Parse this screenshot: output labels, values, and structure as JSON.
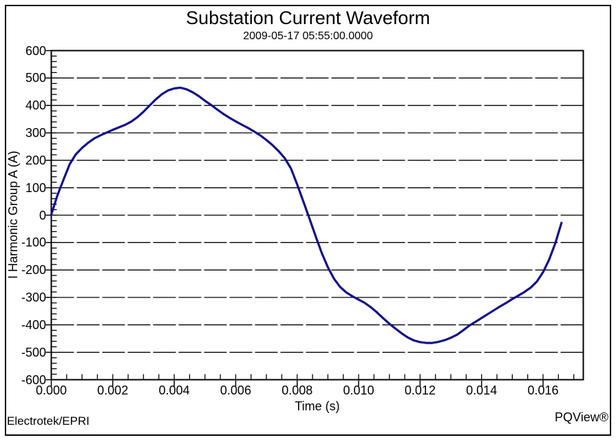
{
  "header": {
    "title": "Substation Current Waveform",
    "subtitle": "2009-05-17 05:55:00.0000"
  },
  "footer": {
    "left": "Electrotek/EPRI",
    "right": "PQView®"
  },
  "colors": {
    "background": "#FFFFFF",
    "border": "#000000",
    "grid": "#000000",
    "text": "#000000",
    "waveform_line": "#10108E"
  },
  "chart_data": {
    "type": "line",
    "title": "Substation Current Waveform",
    "subtitle": "2009-05-17 05:55:00.0000",
    "xlabel": "Time (s)",
    "ylabel": "I Harmonic Group A  (A)",
    "xlim": [
      0,
      0.01731
    ],
    "ylim": [
      -600,
      600
    ],
    "grid": "horizontal-dashed",
    "legend": "none",
    "x_tick_values": [
      0,
      0.002,
      0.004,
      0.006,
      0.008,
      0.01,
      0.012,
      0.014,
      0.016
    ],
    "x_tick_labels": [
      "0.000",
      "0.002",
      "0.004",
      "0.006",
      "0.008",
      "0.010",
      "0.012",
      "0.014",
      "0.016"
    ],
    "x_minor_step": 0.0005,
    "y_tick_values": [
      600,
      500,
      400,
      300,
      200,
      100,
      0,
      -100,
      -200,
      -300,
      -400,
      -500,
      -600
    ],
    "y_tick_labels": [
      "600",
      "500",
      "400",
      "300",
      "200",
      "100",
      "0",
      "-100",
      "-200",
      "-300",
      "-400",
      "-500",
      "-600"
    ],
    "y_minor_step": 20,
    "series": [
      {
        "name": "I Harmonic Group A",
        "color": "#10108E",
        "x": [
          0.0,
          0.0002,
          0.0004,
          0.0006,
          0.0008,
          0.001,
          0.0012,
          0.0014,
          0.0016,
          0.0018,
          0.002,
          0.0022,
          0.0024,
          0.0026,
          0.0028,
          0.003,
          0.0032,
          0.0034,
          0.0036,
          0.0038,
          0.004,
          0.0042,
          0.0044,
          0.0046,
          0.0048,
          0.005,
          0.0052,
          0.0054,
          0.0056,
          0.0058,
          0.006,
          0.0062,
          0.0064,
          0.0066,
          0.0068,
          0.007,
          0.0072,
          0.0074,
          0.0076,
          0.0078,
          0.008,
          0.0082,
          0.0084,
          0.0086,
          0.0088,
          0.009,
          0.0092,
          0.0094,
          0.0096,
          0.0098,
          0.01,
          0.0102,
          0.0104,
          0.0106,
          0.0108,
          0.011,
          0.0112,
          0.0114,
          0.0116,
          0.0118,
          0.012,
          0.0122,
          0.0124,
          0.0126,
          0.0128,
          0.013,
          0.0132,
          0.0134,
          0.0136,
          0.0138,
          0.014,
          0.0142,
          0.0144,
          0.0146,
          0.0148,
          0.015,
          0.0152,
          0.0154,
          0.0156,
          0.0158,
          0.016,
          0.0162,
          0.0164,
          0.0166
        ],
        "y": [
          2,
          72,
          130,
          186,
          222,
          245,
          264,
          280,
          291,
          301,
          311,
          320,
          329,
          341,
          357,
          377,
          400,
          422,
          441,
          455,
          462,
          465,
          459,
          448,
          434,
          417,
          402,
          385,
          369,
          355,
          342,
          330,
          318,
          305,
          291,
          274,
          255,
          233,
          207,
          170,
          112,
          50,
          -12,
          -76,
          -138,
          -190,
          -232,
          -262,
          -282,
          -296,
          -308,
          -320,
          -336,
          -355,
          -376,
          -396,
          -414,
          -431,
          -446,
          -457,
          -463,
          -466,
          -466,
          -462,
          -456,
          -447,
          -436,
          -420,
          -403,
          -389,
          -375,
          -361,
          -347,
          -333,
          -320,
          -306,
          -293,
          -280,
          -264,
          -242,
          -208,
          -162,
          -102,
          -28
        ]
      }
    ]
  }
}
